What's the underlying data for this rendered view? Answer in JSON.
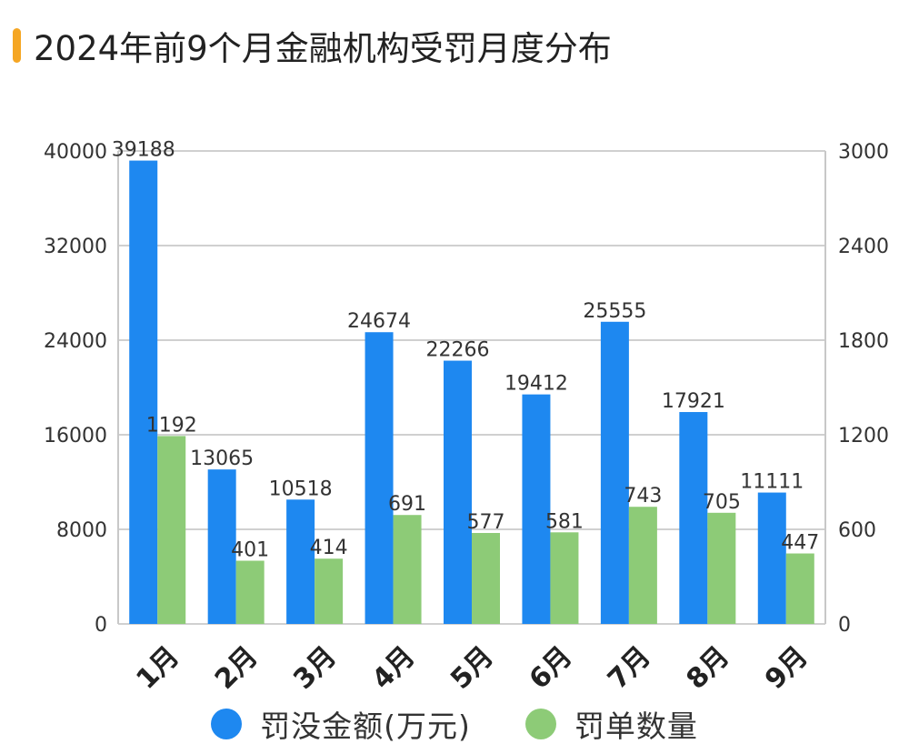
{
  "title": "2024年前9个月金融机构受罚月度分布",
  "accent_color": "#F5A623",
  "chart_data": {
    "type": "bar",
    "title": "2024年前9个月金融机构受罚月度分布",
    "categories": [
      "1月",
      "2月",
      "3月",
      "4月",
      "5月",
      "6月",
      "7月",
      "8月",
      "9月"
    ],
    "series": [
      {
        "name": "罚没金额(万元)",
        "axis": "left",
        "color": "#1E88F0",
        "values": [
          39188,
          13065,
          10518,
          24674,
          22266,
          19412,
          25555,
          17921,
          11111
        ]
      },
      {
        "name": "罚单数量",
        "axis": "right",
        "color": "#8DCB77",
        "values": [
          1192,
          401,
          414,
          691,
          577,
          581,
          743,
          705,
          447
        ]
      }
    ],
    "y_left": {
      "min": 0,
      "max": 40000,
      "ticks": [
        "0",
        "8000",
        "16000",
        "24000",
        "32000",
        "40000"
      ]
    },
    "y_right": {
      "min": 0,
      "max": 3000,
      "ticks": [
        "0",
        "600",
        "1200",
        "1800",
        "2400",
        "3000"
      ]
    },
    "grid": true,
    "legend": "bottom"
  }
}
